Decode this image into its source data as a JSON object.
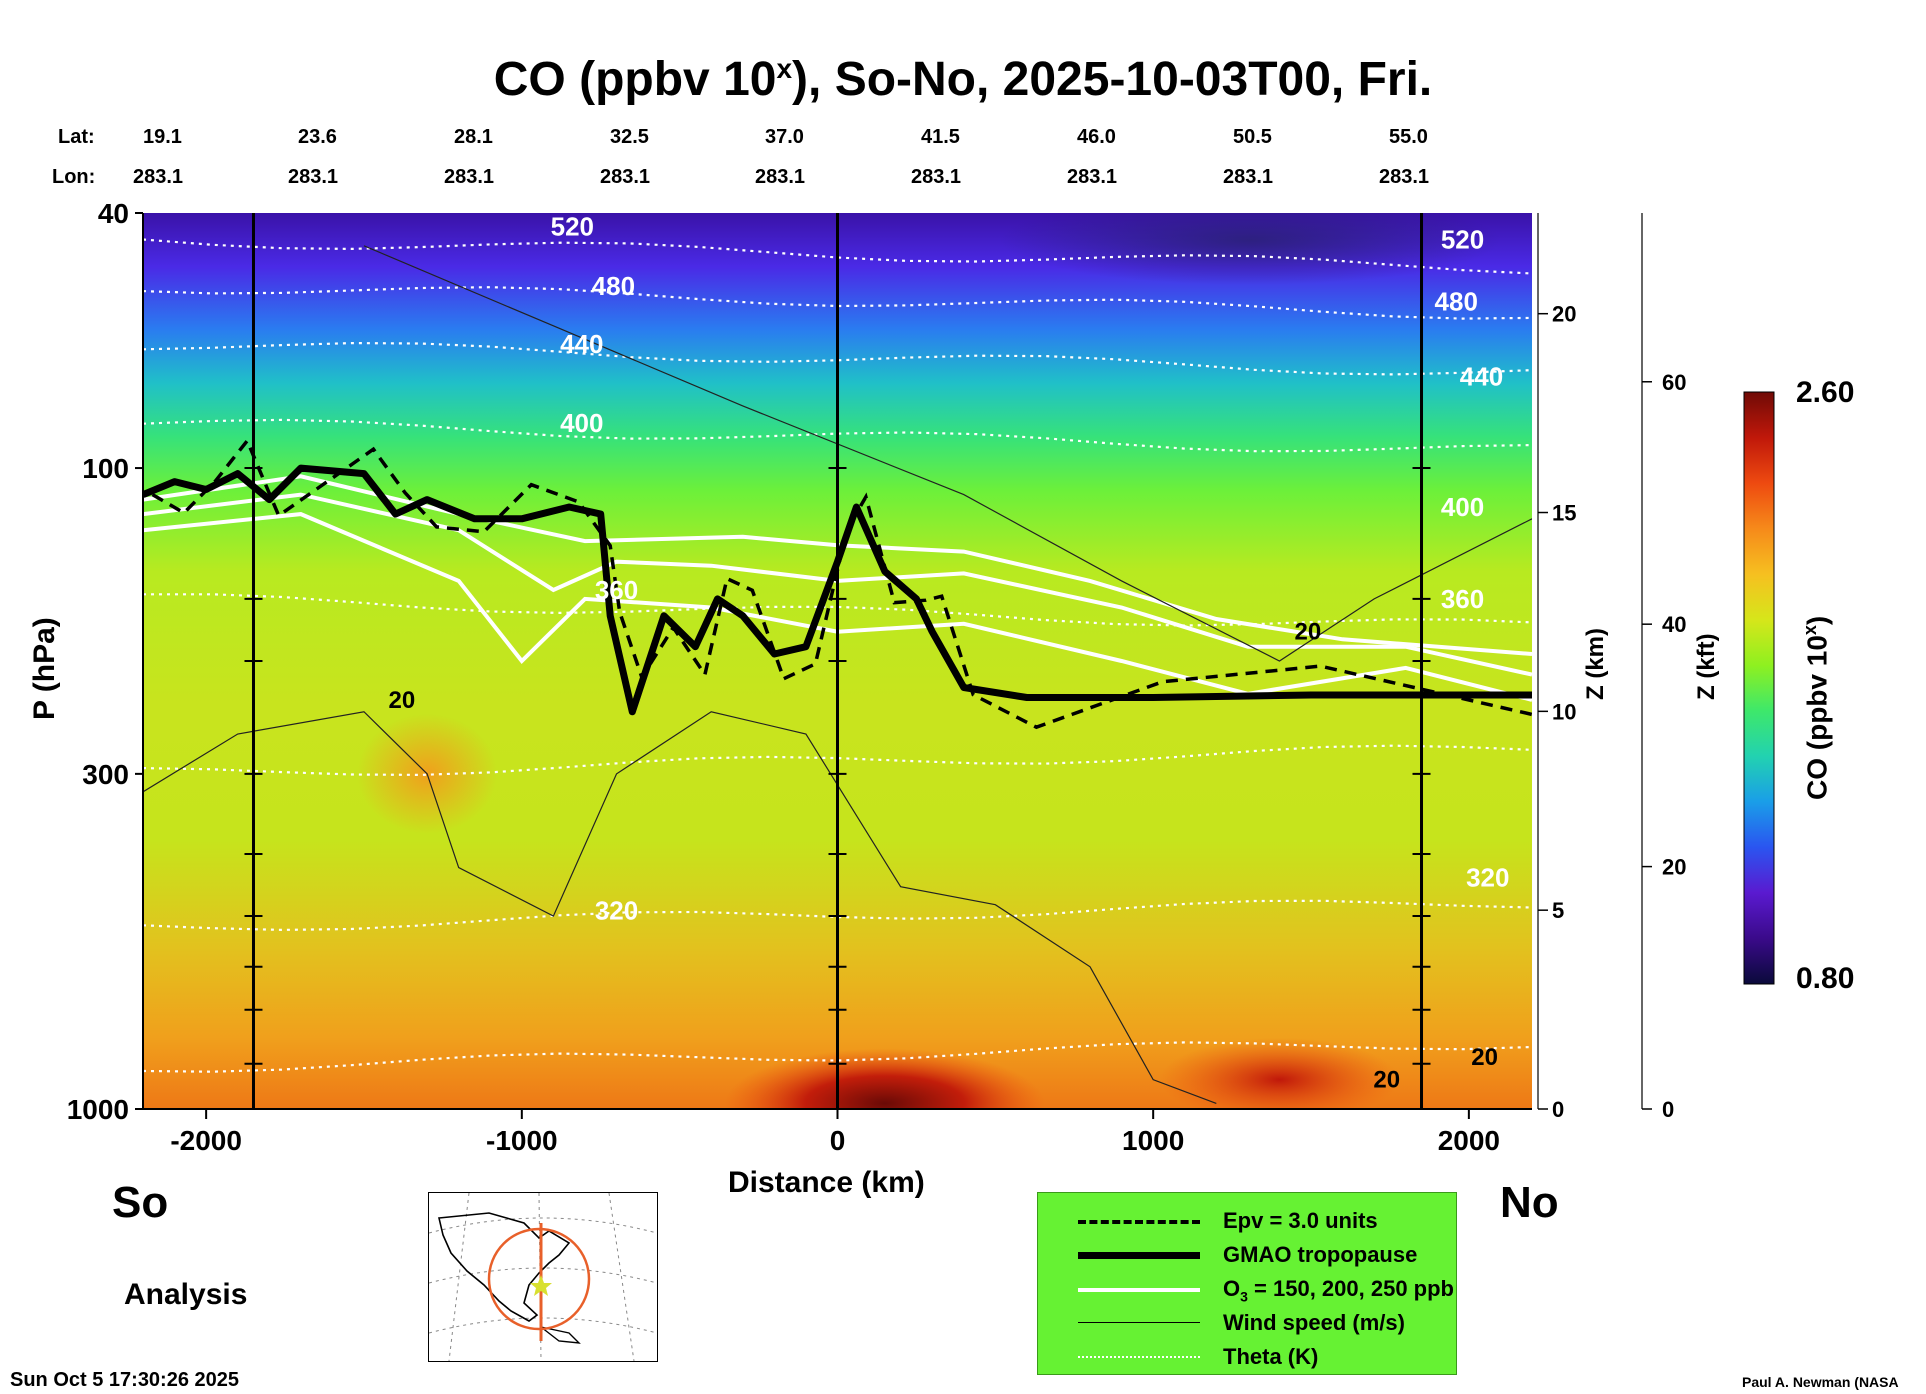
{
  "title_prefix": "CO (ppbv 10",
  "title_sup": "x",
  "title_suffix": "), So-No, 2025-10-03T00, Fri.",
  "lat_label": "Lat:",
  "lon_label": "Lon:",
  "lats": [
    "19.1",
    "23.6",
    "28.1",
    "32.5",
    "37.0",
    "41.5",
    "46.0",
    "50.5",
    "55.0"
  ],
  "lons": [
    "283.1",
    "283.1",
    "283.1",
    "283.1",
    "283.1",
    "283.1",
    "283.1",
    "283.1",
    "283.1"
  ],
  "side_labels": {
    "left": "So",
    "right": "No",
    "mode": "Analysis"
  },
  "timestamp": "Sun Oct  5 17:30:26 2025",
  "credit": "Paul A. Newman (NASA",
  "colorbar": {
    "label_prefix": "CO (ppbv 10",
    "label_sup": "x",
    "label_suffix": ")",
    "max": "2.60",
    "min": "0.80",
    "colors": [
      "#0a0a3a",
      "#3a0a8a",
      "#5a1ad0",
      "#2a55f0",
      "#1a9ee8",
      "#22d2b0",
      "#3ee86a",
      "#8ef020",
      "#d6e61a",
      "#f6c020",
      "#f68a1a",
      "#ee4a10",
      "#c0180a",
      "#700a06"
    ]
  },
  "legend": {
    "epv": "Epv = 3.0 units",
    "trop": "GMAO tropopause",
    "o3_prefix": "O",
    "o3_sub": "3",
    "o3_suffix": " = 150, 200, 250 ppb",
    "wind": "Wind speed (m/s)",
    "theta": "Theta (K)"
  },
  "chart_data": {
    "type": "heatmap",
    "xlabel": "Distance (km)",
    "ylabel": "P (hPa)",
    "y2label": "Z (km)",
    "y3label": "Z (kft)",
    "xlim": [
      -2200,
      2200
    ],
    "ylim_hpa": [
      1000,
      40
    ],
    "xticks": [
      -2000,
      -1000,
      0,
      1000,
      2000
    ],
    "yticks_hpa": [
      1000,
      300,
      100,
      40
    ],
    "zticks_km": [
      0,
      5,
      10,
      15,
      20
    ],
    "zticks_kft": [
      0,
      20,
      40,
      60
    ],
    "sounding_x_km": [
      -1850,
      0,
      1850
    ],
    "theta_labels": [
      {
        "text": "520",
        "x": -840,
        "p": 42
      },
      {
        "text": "480",
        "x": -710,
        "p": 52
      },
      {
        "text": "440",
        "x": -810,
        "p": 64
      },
      {
        "text": "400",
        "x": -810,
        "p": 85
      },
      {
        "text": "360",
        "x": -700,
        "p": 155
      },
      {
        "text": "320",
        "x": -700,
        "p": 490
      },
      {
        "text": "520",
        "x": 1980,
        "p": 44
      },
      {
        "text": "480",
        "x": 1960,
        "p": 55
      },
      {
        "text": "440",
        "x": 2040,
        "p": 72
      },
      {
        "text": "400",
        "x": 1980,
        "p": 115
      },
      {
        "text": "360",
        "x": 1980,
        "p": 160
      },
      {
        "text": "320",
        "x": 2060,
        "p": 435
      }
    ],
    "wind_labels": [
      {
        "text": "20",
        "x": -1380,
        "p": 230
      },
      {
        "text": "20",
        "x": 1490,
        "p": 180
      },
      {
        "text": "20",
        "x": 1740,
        "p": 900
      },
      {
        "text": "20",
        "x": 2050,
        "p": 830
      }
    ],
    "tropopause_hpa": [
      {
        "x": -2200,
        "p": 110
      },
      {
        "x": -2100,
        "p": 105
      },
      {
        "x": -2000,
        "p": 108
      },
      {
        "x": -1900,
        "p": 102
      },
      {
        "x": -1800,
        "p": 112
      },
      {
        "x": -1700,
        "p": 100
      },
      {
        "x": -1500,
        "p": 102
      },
      {
        "x": -1400,
        "p": 118
      },
      {
        "x": -1300,
        "p": 112
      },
      {
        "x": -1150,
        "p": 120
      },
      {
        "x": -1000,
        "p": 120
      },
      {
        "x": -850,
        "p": 115
      },
      {
        "x": -750,
        "p": 118
      },
      {
        "x": -720,
        "p": 170
      },
      {
        "x": -650,
        "p": 240
      },
      {
        "x": -550,
        "p": 170
      },
      {
        "x": -450,
        "p": 190
      },
      {
        "x": -380,
        "p": 160
      },
      {
        "x": -300,
        "p": 170
      },
      {
        "x": -200,
        "p": 195
      },
      {
        "x": -100,
        "p": 190
      },
      {
        "x": 0,
        "p": 140
      },
      {
        "x": 60,
        "p": 115
      },
      {
        "x": 150,
        "p": 145
      },
      {
        "x": 250,
        "p": 160
      },
      {
        "x": 300,
        "p": 180
      },
      {
        "x": 400,
        "p": 220
      },
      {
        "x": 600,
        "p": 228
      },
      {
        "x": 1000,
        "p": 228
      },
      {
        "x": 1500,
        "p": 226
      },
      {
        "x": 2200,
        "p": 226
      }
    ],
    "o3_contours_hpa": [
      [
        {
          "x": -2200,
          "p": 112
        },
        {
          "x": -1700,
          "p": 103
        },
        {
          "x": -1200,
          "p": 118
        },
        {
          "x": -800,
          "p": 130
        },
        {
          "x": -300,
          "p": 128
        },
        {
          "x": 0,
          "p": 132
        },
        {
          "x": 400,
          "p": 135
        },
        {
          "x": 800,
          "p": 150
        },
        {
          "x": 1200,
          "p": 172
        },
        {
          "x": 1600,
          "p": 185
        },
        {
          "x": 2200,
          "p": 195
        }
      ],
      [
        {
          "x": -2200,
          "p": 118
        },
        {
          "x": -1700,
          "p": 110
        },
        {
          "x": -1200,
          "p": 125
        },
        {
          "x": -900,
          "p": 155
        },
        {
          "x": -700,
          "p": 140
        },
        {
          "x": -400,
          "p": 142
        },
        {
          "x": 0,
          "p": 150
        },
        {
          "x": 400,
          "p": 146
        },
        {
          "x": 900,
          "p": 165
        },
        {
          "x": 1300,
          "p": 190
        },
        {
          "x": 1800,
          "p": 190
        },
        {
          "x": 2200,
          "p": 210
        }
      ],
      [
        {
          "x": -2200,
          "p": 125
        },
        {
          "x": -1700,
          "p": 118
        },
        {
          "x": -1200,
          "p": 150
        },
        {
          "x": -1000,
          "p": 200
        },
        {
          "x": -800,
          "p": 160
        },
        {
          "x": -400,
          "p": 165
        },
        {
          "x": 0,
          "p": 180
        },
        {
          "x": 400,
          "p": 175
        },
        {
          "x": 900,
          "p": 200
        },
        {
          "x": 1300,
          "p": 225
        },
        {
          "x": 1800,
          "p": 205
        },
        {
          "x": 2200,
          "p": 230
        }
      ]
    ],
    "co_hotspots": [
      {
        "x": 150,
        "p": 980,
        "level": "max"
      },
      {
        "x": 1400,
        "p": 900,
        "level": "high"
      },
      {
        "x": -1300,
        "p": 300,
        "level": "elevated"
      }
    ]
  }
}
